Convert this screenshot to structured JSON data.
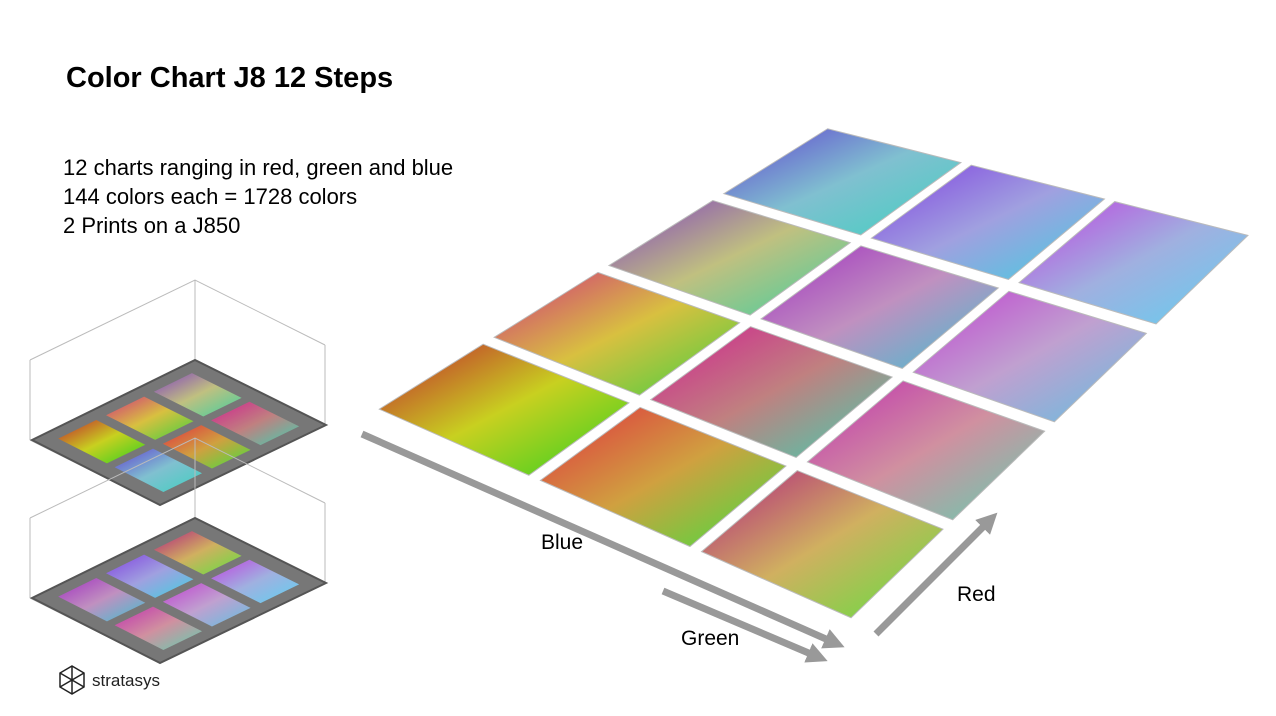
{
  "title": "Color Chart J8 12 Steps",
  "lines": [
    "12 charts ranging in red, green and blue",
    "144 colors each = 1728 colors",
    "2 Prints on a J850"
  ],
  "axis_labels": {
    "blue": "Blue",
    "green": "Green",
    "red": "Red"
  },
  "logo": "stratasys"
}
